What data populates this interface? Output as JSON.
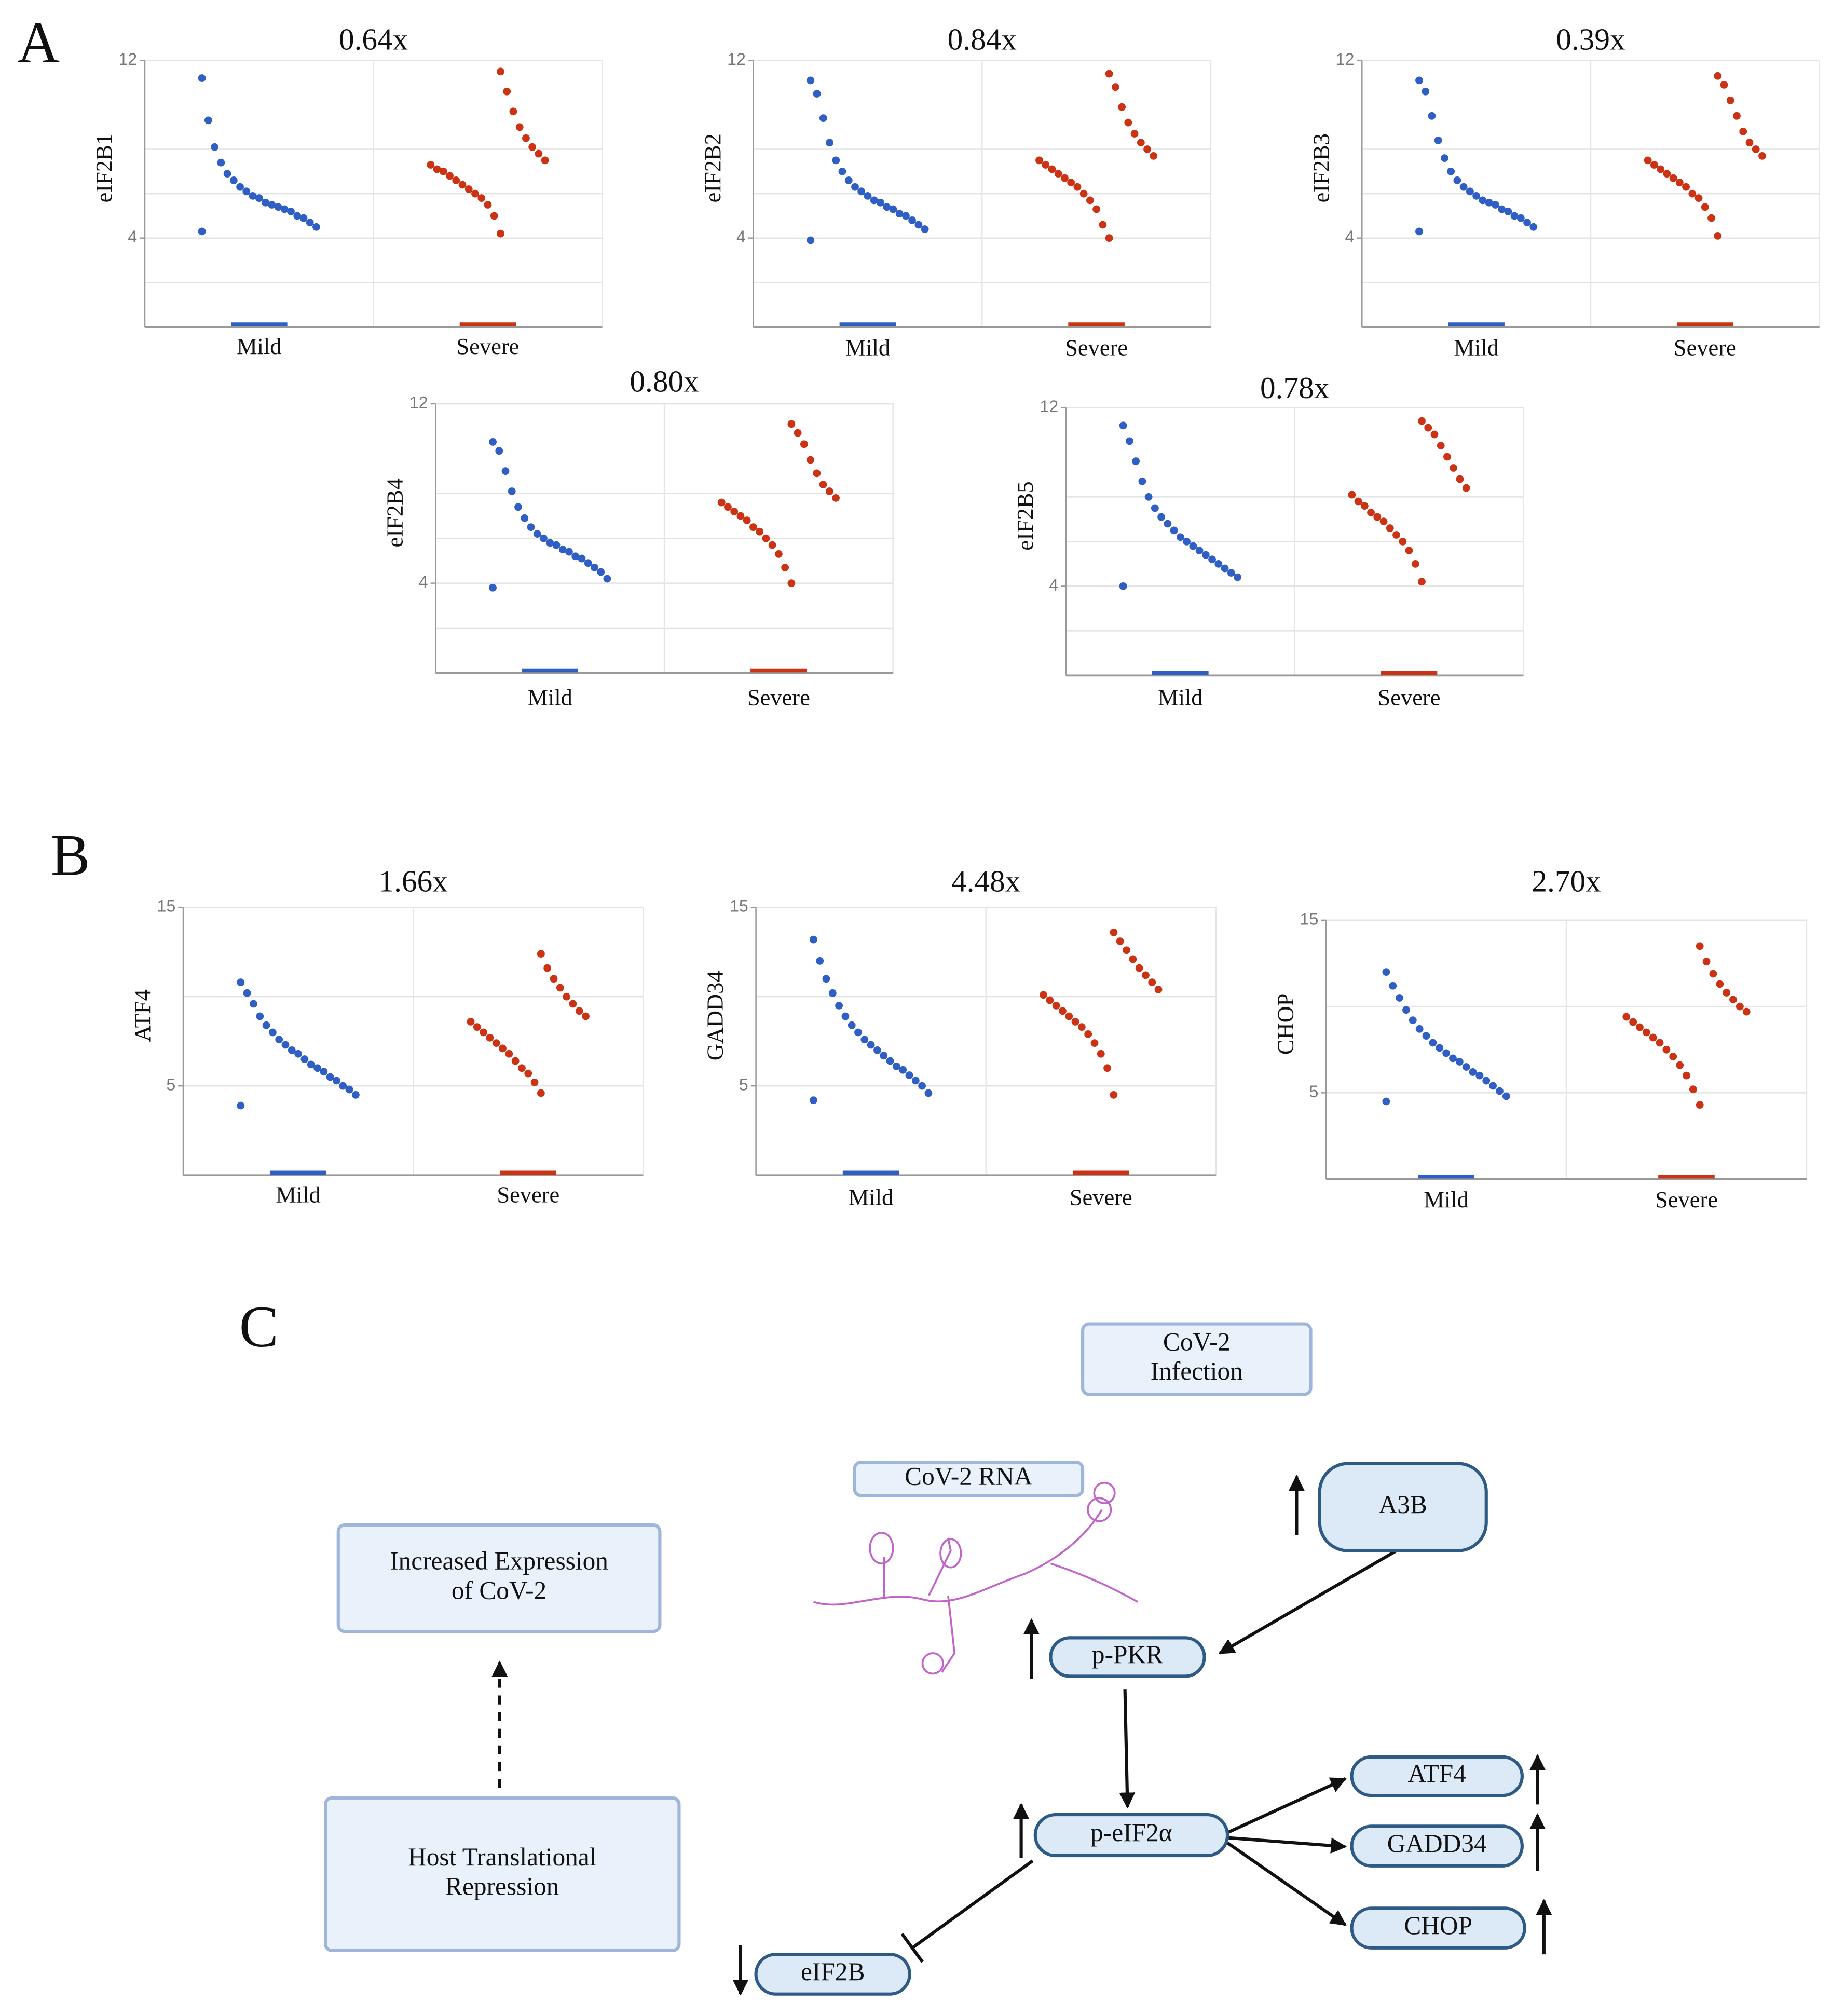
{
  "panels": [
    "A",
    "B",
    "C"
  ],
  "chart_data": [
    {
      "type": "strip",
      "title": "0.64x",
      "y_label": "eIF2B1",
      "categories": [
        "Mild",
        "Severe"
      ],
      "colors": [
        "#2f5fc4",
        "#cc3314"
      ],
      "ylim": [
        0,
        12
      ],
      "yticks": [
        4,
        12
      ],
      "ygrid": [
        2,
        4,
        6,
        8,
        12
      ],
      "values": [
        [
          4.3,
          4.5,
          4.7,
          4.9,
          5.0,
          5.2,
          5.3,
          5.4,
          5.5,
          5.6,
          5.8,
          5.9,
          6.1,
          6.3,
          6.6,
          6.9,
          7.4,
          8.1,
          9.3,
          11.2
        ],
        [
          4.2,
          5.0,
          5.5,
          5.8,
          6.0,
          6.2,
          6.4,
          6.6,
          6.8,
          7.0,
          7.1,
          7.3,
          7.5,
          7.8,
          8.1,
          8.5,
          9.0,
          9.7,
          10.6,
          11.5
        ]
      ]
    },
    {
      "type": "strip",
      "title": "0.84x",
      "y_label": "eIF2B2",
      "categories": [
        "Mild",
        "Severe"
      ],
      "colors": [
        "#2f5fc4",
        "#cc3314"
      ],
      "ylim": [
        0,
        12
      ],
      "yticks": [
        4,
        12
      ],
      "ygrid": [
        2,
        4,
        6,
        8,
        12
      ],
      "values": [
        [
          3.9,
          4.4,
          4.6,
          4.8,
          5.0,
          5.1,
          5.3,
          5.4,
          5.6,
          5.7,
          5.9,
          6.1,
          6.3,
          6.6,
          7.0,
          7.5,
          8.3,
          9.4,
          10.5,
          11.1
        ],
        [
          4.0,
          4.6,
          5.3,
          5.7,
          6.0,
          6.3,
          6.5,
          6.7,
          6.9,
          7.1,
          7.3,
          7.5,
          7.7,
          8.0,
          8.3,
          8.7,
          9.2,
          9.9,
          10.8,
          11.4
        ]
      ]
    },
    {
      "type": "strip",
      "title": "0.39x",
      "y_label": "eIF2B3",
      "categories": [
        "Mild",
        "Severe"
      ],
      "colors": [
        "#2f5fc4",
        "#cc3314"
      ],
      "ylim": [
        0,
        12
      ],
      "yticks": [
        4,
        12
      ],
      "ygrid": [
        2,
        4,
        6,
        8,
        12
      ],
      "values": [
        [
          4.3,
          4.5,
          4.7,
          4.9,
          5.0,
          5.2,
          5.3,
          5.5,
          5.6,
          5.7,
          5.9,
          6.1,
          6.3,
          6.6,
          7.0,
          7.6,
          8.4,
          9.5,
          10.6,
          11.1
        ],
        [
          4.1,
          4.9,
          5.4,
          5.8,
          6.0,
          6.3,
          6.5,
          6.7,
          6.9,
          7.1,
          7.3,
          7.5,
          7.7,
          8.0,
          8.3,
          8.8,
          9.5,
          10.2,
          10.9,
          11.3
        ]
      ]
    },
    {
      "type": "strip",
      "title": "0.80x",
      "y_label": "eIF2B4",
      "categories": [
        "Mild",
        "Severe"
      ],
      "colors": [
        "#2f5fc4",
        "#cc3314"
      ],
      "ylim": [
        0,
        12
      ],
      "yticks": [
        4,
        12
      ],
      "ygrid": [
        2,
        4,
        6,
        8,
        12
      ],
      "values": [
        [
          3.8,
          4.2,
          4.5,
          4.7,
          4.9,
          5.1,
          5.2,
          5.4,
          5.5,
          5.7,
          5.8,
          6.0,
          6.2,
          6.5,
          6.9,
          7.4,
          8.1,
          9.0,
          9.9,
          10.3
        ],
        [
          4.0,
          4.7,
          5.3,
          5.7,
          6.0,
          6.3,
          6.5,
          6.8,
          7.0,
          7.2,
          7.4,
          7.6,
          7.8,
          8.1,
          8.4,
          8.9,
          9.5,
          10.2,
          10.7,
          11.1
        ]
      ]
    },
    {
      "type": "strip",
      "title": "0.78x",
      "y_label": "eIF2B5",
      "categories": [
        "Mild",
        "Severe"
      ],
      "colors": [
        "#2f5fc4",
        "#cc3314"
      ],
      "ylim": [
        0,
        12
      ],
      "yticks": [
        4,
        12
      ],
      "ygrid": [
        2,
        4,
        6,
        8,
        12
      ],
      "values": [
        [
          4.0,
          4.4,
          4.6,
          4.8,
          5.0,
          5.2,
          5.4,
          5.6,
          5.8,
          6.0,
          6.2,
          6.5,
          6.8,
          7.1,
          7.5,
          8.0,
          8.7,
          9.6,
          10.5,
          11.2
        ],
        [
          4.2,
          5.0,
          5.6,
          6.0,
          6.3,
          6.6,
          6.9,
          7.1,
          7.3,
          7.6,
          7.8,
          8.1,
          8.4,
          8.8,
          9.3,
          9.8,
          10.3,
          10.8,
          11.1,
          11.4
        ]
      ]
    },
    {
      "type": "strip",
      "title": "1.66x",
      "y_label": "ATF4",
      "categories": [
        "Mild",
        "Severe"
      ],
      "colors": [
        "#2f5fc4",
        "#cc3314"
      ],
      "ylim": [
        0,
        15
      ],
      "yticks": [
        5,
        15
      ],
      "ygrid": [
        5,
        10,
        15
      ],
      "values": [
        [
          3.9,
          4.5,
          4.8,
          5.0,
          5.3,
          5.5,
          5.8,
          6.0,
          6.2,
          6.5,
          6.8,
          7.0,
          7.3,
          7.6,
          8.0,
          8.4,
          8.9,
          9.6,
          10.2,
          10.8
        ],
        [
          4.6,
          5.2,
          5.7,
          6.0,
          6.4,
          6.8,
          7.1,
          7.4,
          7.7,
          8.0,
          8.3,
          8.6,
          8.9,
          9.2,
          9.6,
          10.0,
          10.5,
          11.0,
          11.6,
          12.4
        ]
      ]
    },
    {
      "type": "strip",
      "title": "4.48x",
      "y_label": "GADD34",
      "categories": [
        "Mild",
        "Severe"
      ],
      "colors": [
        "#2f5fc4",
        "#cc3314"
      ],
      "ylim": [
        0,
        15
      ],
      "yticks": [
        5,
        15
      ],
      "ygrid": [
        5,
        10,
        15
      ],
      "values": [
        [
          4.2,
          4.6,
          5.0,
          5.3,
          5.6,
          5.9,
          6.1,
          6.4,
          6.7,
          7.0,
          7.3,
          7.6,
          8.0,
          8.4,
          8.9,
          9.5,
          10.2,
          11.0,
          12.0,
          13.2
        ],
        [
          4.5,
          6.0,
          6.8,
          7.4,
          7.9,
          8.3,
          8.6,
          8.9,
          9.2,
          9.5,
          9.8,
          10.1,
          10.4,
          10.8,
          11.2,
          11.6,
          12.1,
          12.6,
          13.1,
          13.6
        ]
      ]
    },
    {
      "type": "strip",
      "title": "2.70x",
      "y_label": "CHOP",
      "categories": [
        "Mild",
        "Severe"
      ],
      "colors": [
        "#2f5fc4",
        "#cc3314"
      ],
      "ylim": [
        0,
        15
      ],
      "yticks": [
        5,
        15
      ],
      "ygrid": [
        5,
        10,
        15
      ],
      "values": [
        [
          4.5,
          4.8,
          5.1,
          5.4,
          5.7,
          6.0,
          6.2,
          6.5,
          6.8,
          7.0,
          7.3,
          7.6,
          7.9,
          8.3,
          8.7,
          9.2,
          9.8,
          10.5,
          11.2,
          12.0
        ],
        [
          4.3,
          5.2,
          6.0,
          6.6,
          7.1,
          7.5,
          7.9,
          8.2,
          8.5,
          8.8,
          9.1,
          9.4,
          9.7,
          10.0,
          10.4,
          10.8,
          11.3,
          11.9,
          12.6,
          13.5
        ]
      ]
    }
  ],
  "diagram": {
    "nodes": [
      {
        "lines": [
          "CoV-2",
          "Infection"
        ]
      },
      {
        "lines": [
          "CoV-2 RNA"
        ]
      },
      {
        "lines": [
          "A3B"
        ]
      },
      {
        "lines": [
          "Increased Expression",
          "of CoV-2"
        ]
      },
      {
        "lines": [
          "p-PKR"
        ]
      },
      {
        "lines": [
          "Host Translational",
          "Repression"
        ]
      },
      {
        "lines": [
          "p-eIF2α"
        ]
      },
      {
        "lines": [
          "ATF4"
        ]
      },
      {
        "lines": [
          "GADD34"
        ]
      },
      {
        "lines": [
          "CHOP"
        ]
      },
      {
        "lines": [
          "eIF2B"
        ]
      }
    ]
  }
}
